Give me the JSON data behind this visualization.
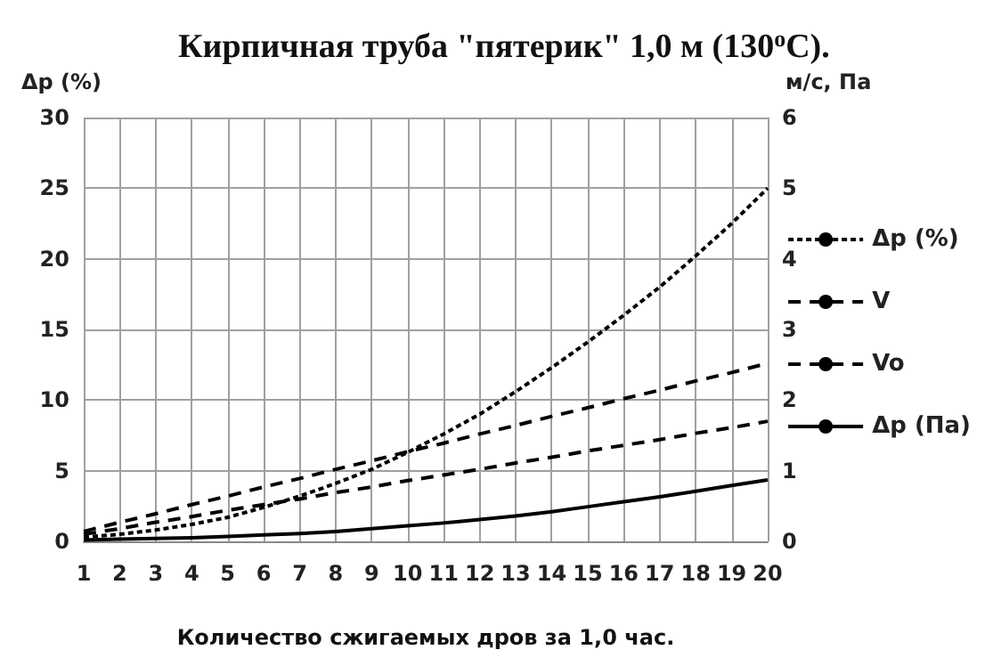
{
  "chart_data": {
    "type": "line",
    "title": "Кирпичная труба \"пятерик\" 1,0 м (130$^{o}$С).",
    "xlabel": "Количество сжигаемых дров за 1,0 час.",
    "ylabel": "Δp (%)",
    "y2label": "м/с, Па",
    "categories": [
      "1",
      "2",
      "3",
      "4",
      "5",
      "6",
      "7",
      "8",
      "9",
      "10",
      "11",
      "12",
      "13",
      "14",
      "15",
      "16",
      "17",
      "18",
      "19",
      "20"
    ],
    "series": [
      {
        "name": "Δp (%)",
        "color": "#000000",
        "line_style": "dotted",
        "values": [
          0.3,
          0.5,
          0.8,
          1.2,
          1.7,
          2.4,
          3.2,
          4.1,
          5.1,
          6.3,
          7.6,
          9.0,
          10.6,
          12.3,
          14.1,
          16.0,
          18.0,
          20.2,
          22.5,
          25.0
        ]
      },
      {
        "name": "V",
        "color": "#000000",
        "line_style": "dashed",
        "axis": "y2",
        "values": [
          0.1,
          0.18,
          0.27,
          0.35,
          0.44,
          0.52,
          0.6,
          0.69,
          0.77,
          0.86,
          0.94,
          1.02,
          1.11,
          1.19,
          1.28,
          1.36,
          1.44,
          1.53,
          1.61,
          1.7
        ]
      },
      {
        "name": "Vo",
        "color": "#000000",
        "line_style": "dashed",
        "axis": "y2",
        "values": [
          0.14,
          0.27,
          0.39,
          0.52,
          0.64,
          0.77,
          0.89,
          1.02,
          1.14,
          1.27,
          1.39,
          1.52,
          1.64,
          1.77,
          1.89,
          2.02,
          2.14,
          2.27,
          2.39,
          2.52
        ]
      },
      {
        "name": "Δp (Па)",
        "color": "#000000",
        "line_style": "solid",
        "axis": "y2",
        "values": [
          0.02,
          0.03,
          0.04,
          0.05,
          0.07,
          0.09,
          0.11,
          0.14,
          0.18,
          0.22,
          0.26,
          0.31,
          0.36,
          0.42,
          0.49,
          0.56,
          0.63,
          0.71,
          0.79,
          0.87
        ]
      }
    ],
    "ylim": [
      0,
      30
    ],
    "yticks": [
      0,
      5,
      10,
      15,
      20,
      25,
      30
    ],
    "y2lim": [
      0,
      6
    ],
    "y2ticks": [
      0,
      1,
      2,
      3,
      4,
      5,
      6
    ],
    "grid": true,
    "legend": "right",
    "marker": "none"
  }
}
